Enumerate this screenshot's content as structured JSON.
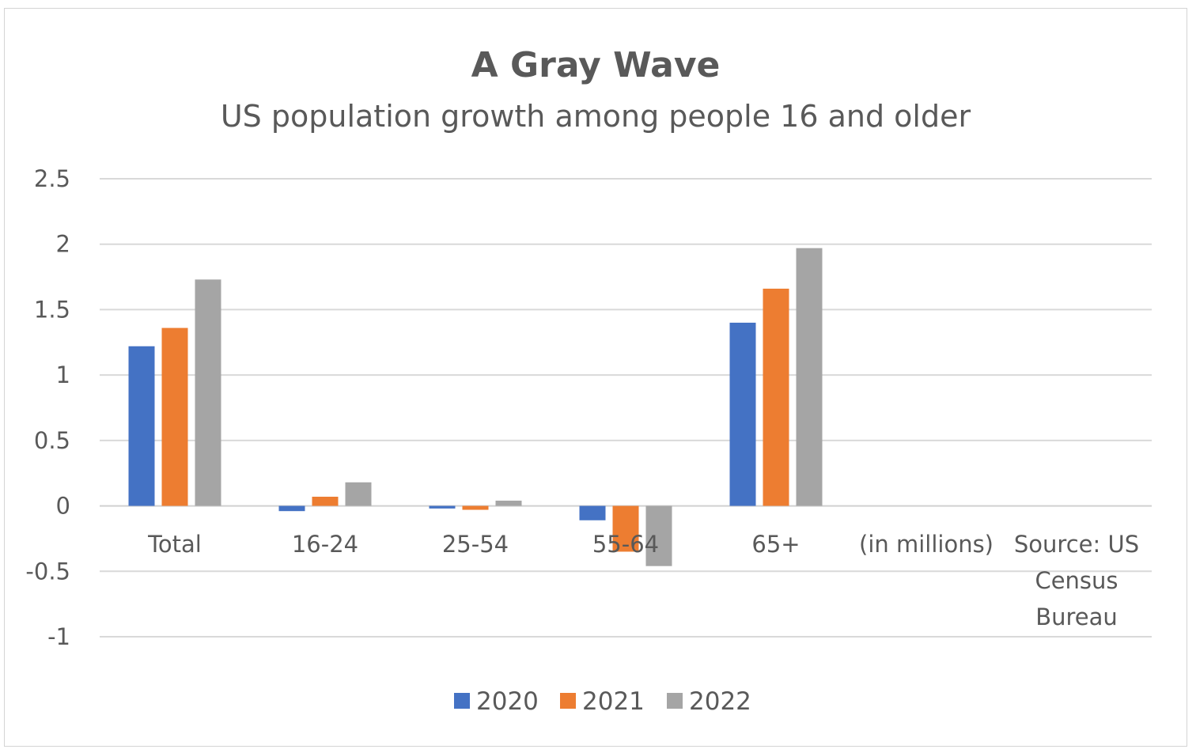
{
  "chart_data": {
    "type": "bar",
    "title": "A Gray Wave",
    "subtitle": "US population growth among people 16 and older",
    "categories": [
      "Total",
      "16-24",
      "25-54",
      "55-64",
      "65+",
      "(in millions)",
      "Source: US Census Bureau"
    ],
    "category_lines": [
      [
        "Total"
      ],
      [
        "16-24"
      ],
      [
        "25-54"
      ],
      [
        "55-64"
      ],
      [
        "65+"
      ],
      [
        "(in millions)"
      ],
      [
        "Source: US",
        "Census",
        "Bureau"
      ]
    ],
    "series": [
      {
        "name": "2020",
        "color": "#4472c4",
        "values": [
          1.22,
          -0.04,
          -0.02,
          -0.11,
          1.4,
          null,
          null
        ]
      },
      {
        "name": "2021",
        "color": "#ed7d31",
        "values": [
          1.36,
          0.07,
          -0.03,
          -0.35,
          1.66,
          null,
          null
        ]
      },
      {
        "name": "2022",
        "color": "#a5a5a5",
        "values": [
          1.73,
          0.18,
          0.04,
          -0.46,
          1.97,
          null,
          null
        ]
      }
    ],
    "yticks": [
      "2.5",
      "2",
      "1.5",
      "1",
      "0.5",
      "0",
      "-0.5",
      "-1"
    ],
    "ylim": [
      -1,
      2.5
    ],
    "grid": true,
    "legend_position": "bottom"
  }
}
